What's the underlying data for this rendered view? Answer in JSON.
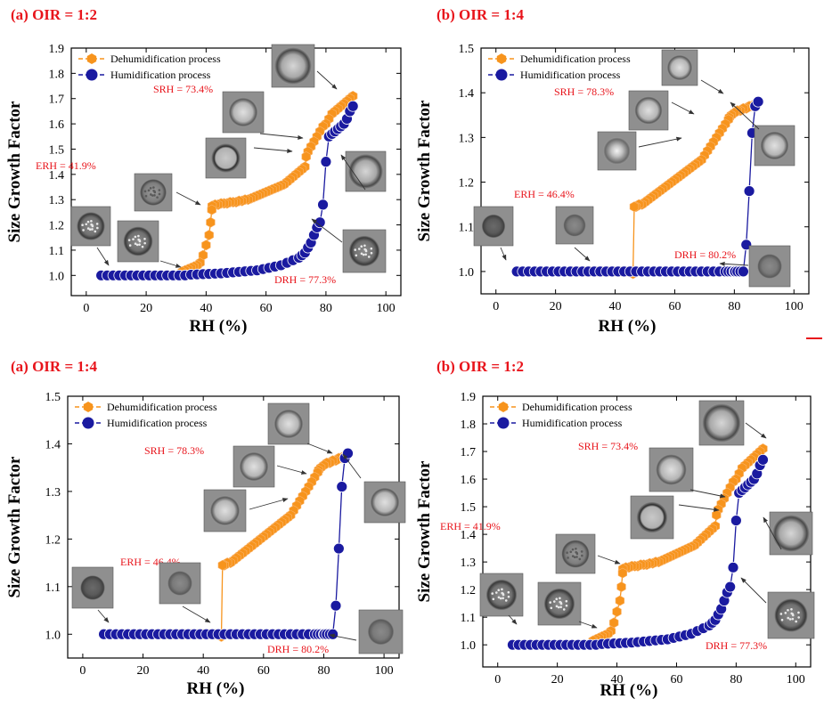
{
  "colors": {
    "dehumid": "#f7941d",
    "humid": "#1a1aa0",
    "title": "#e8141b",
    "annotation": "#e8141b",
    "arrow": "#333333"
  },
  "chart_data": [
    {
      "type": "scatter",
      "title": "(a) OIR = 1:2",
      "xlabel": "RH (%)",
      "ylabel": "Size Growth Factor",
      "xlim": [
        -5,
        105
      ],
      "ylim": [
        0.92,
        1.9
      ],
      "xticks": [
        0,
        20,
        40,
        60,
        80,
        100
      ],
      "yticks": [
        1.0,
        1.1,
        1.2,
        1.3,
        1.4,
        1.5,
        1.6,
        1.7,
        1.8,
        1.9
      ],
      "yticks_labels": [
        "1.0",
        "1.1",
        "1.2",
        "1.3",
        "1.4",
        "1.5",
        "1.6",
        "1.7",
        "1.8",
        "1.9"
      ],
      "legend": [
        "Dehumidification process",
        "Humidification process"
      ],
      "legend_position": "top-left",
      "annotations": [
        "SRH = 73.4%",
        "ERH = 41.9%",
        "DRH = 77.3%"
      ],
      "series": [
        {
          "name": "Dehumidification process",
          "x": [
            89,
            88,
            87,
            86,
            85,
            84,
            83,
            82,
            81,
            80,
            79,
            78,
            77,
            76,
            75,
            74,
            73.4,
            73,
            72,
            71,
            70,
            69,
            68,
            67,
            66,
            65,
            64,
            63,
            62,
            61,
            60,
            59,
            58,
            57,
            56,
            55,
            54,
            53,
            52,
            51,
            50,
            49,
            48,
            47,
            46,
            45,
            44,
            43,
            42,
            41.9,
            41.5,
            41,
            40,
            39,
            38,
            37,
            36,
            35,
            34,
            33,
            32
          ],
          "y": [
            1.71,
            1.7,
            1.69,
            1.68,
            1.67,
            1.66,
            1.65,
            1.64,
            1.62,
            1.6,
            1.59,
            1.57,
            1.55,
            1.53,
            1.51,
            1.49,
            1.47,
            1.43,
            1.42,
            1.41,
            1.4,
            1.39,
            1.38,
            1.37,
            1.36,
            1.355,
            1.35,
            1.345,
            1.34,
            1.335,
            1.33,
            1.325,
            1.32,
            1.315,
            1.31,
            1.305,
            1.3,
            1.3,
            1.295,
            1.295,
            1.29,
            1.29,
            1.29,
            1.285,
            1.285,
            1.285,
            1.28,
            1.28,
            1.275,
            1.26,
            1.21,
            1.16,
            1.12,
            1.08,
            1.05,
            1.04,
            1.035,
            1.03,
            1.025,
            1.02,
            1.015
          ]
        },
        {
          "name": "Humidification process",
          "x": [
            5,
            7,
            9,
            11,
            13,
            15,
            17,
            19,
            21,
            23,
            25,
            27,
            29,
            31,
            33,
            35,
            37,
            39,
            41,
            43,
            45,
            47,
            49,
            51,
            53,
            55,
            57,
            59,
            61,
            63,
            65,
            67,
            69,
            71,
            72,
            73,
            74,
            75,
            76,
            77,
            78,
            79,
            80,
            81,
            82,
            83,
            84,
            85,
            86,
            87,
            88,
            89
          ],
          "y": [
            1.0,
            1.0,
            1.0,
            1.0,
            1.0,
            1.0,
            1.0,
            1.0,
            1.0,
            1.0,
            1.0,
            1.0,
            1.0,
            1.0,
            1.0,
            1.003,
            1.004,
            1.005,
            1.006,
            1.007,
            1.008,
            1.01,
            1.012,
            1.014,
            1.016,
            1.018,
            1.02,
            1.025,
            1.03,
            1.035,
            1.04,
            1.05,
            1.06,
            1.07,
            1.08,
            1.09,
            1.11,
            1.13,
            1.16,
            1.19,
            1.21,
            1.28,
            1.45,
            1.55,
            1.56,
            1.57,
            1.58,
            1.59,
            1.6,
            1.62,
            1.65,
            1.67
          ]
        }
      ]
    },
    {
      "type": "scatter",
      "title": "(b) OIR = 1:4",
      "xlabel": "RH (%)",
      "ylabel": "Size Growth Factor",
      "xlim": [
        -5,
        105
      ],
      "ylim": [
        0.95,
        1.5
      ],
      "xticks": [
        0,
        20,
        40,
        60,
        80,
        100
      ],
      "yticks": [
        1.0,
        1.1,
        1.2,
        1.3,
        1.4,
        1.5
      ],
      "yticks_labels": [
        "1.0",
        "1.1",
        "1.2",
        "1.3",
        "1.4",
        "1.5"
      ],
      "legend": [
        "Dehumidification process",
        "Humidification process"
      ],
      "legend_position": "top-left",
      "annotations": [
        "SRH = 78.3%",
        "ERH = 46.4%",
        "DRH = 80.2%"
      ],
      "series": [
        {
          "name": "Dehumidification process",
          "x": [
            88,
            87,
            86,
            85,
            84,
            83,
            82,
            81,
            80,
            79,
            78.3,
            78,
            77,
            76,
            75,
            74,
            73,
            72,
            71,
            70,
            69,
            68,
            67,
            66,
            65,
            64,
            63,
            62,
            61,
            60,
            59,
            58,
            57,
            56,
            55,
            54,
            53,
            52,
            51,
            50,
            49,
            48,
            47,
            46.4,
            46,
            45,
            44,
            43,
            42,
            41,
            40,
            39,
            38,
            37,
            36,
            35,
            34,
            33,
            32,
            30,
            28,
            26
          ],
          "y": [
            1.38,
            1.375,
            1.37,
            1.37,
            1.365,
            1.365,
            1.36,
            1.36,
            1.355,
            1.35,
            1.345,
            1.34,
            1.33,
            1.32,
            1.31,
            1.3,
            1.29,
            1.28,
            1.27,
            1.26,
            1.25,
            1.245,
            1.24,
            1.235,
            1.23,
            1.225,
            1.22,
            1.215,
            1.21,
            1.205,
            1.2,
            1.195,
            1.19,
            1.185,
            1.18,
            1.175,
            1.17,
            1.165,
            1.16,
            1.155,
            1.15,
            1.15,
            1.145,
            1.145,
            0.995,
            1.0,
            1.0,
            1.0,
            1.0,
            1.0,
            1.0,
            1.0,
            1.0,
            1.0,
            1.0,
            1.0,
            1.0,
            1.0,
            1.0,
            1.0,
            1.0,
            1.0
          ]
        },
        {
          "name": "Humidification process",
          "x": [
            7,
            9,
            11,
            13,
            15,
            17,
            19,
            21,
            23,
            25,
            27,
            29,
            31,
            33,
            35,
            37,
            39,
            41,
            43,
            45,
            47,
            49,
            51,
            53,
            55,
            57,
            59,
            61,
            63,
            65,
            67,
            69,
            71,
            73,
            75,
            77,
            78,
            79,
            80,
            80.2,
            81,
            82,
            83,
            84,
            85,
            86,
            87,
            88
          ],
          "y": [
            1.0,
            1.0,
            1.0,
            1.0,
            1.0,
            1.0,
            1.0,
            1.0,
            1.0,
            1.0,
            1.0,
            1.0,
            1.0,
            1.0,
            1.0,
            1.0,
            1.0,
            1.0,
            1.0,
            1.0,
            1.0,
            1.0,
            1.0,
            1.0,
            1.0,
            1.0,
            1.0,
            1.0,
            1.0,
            1.0,
            1.0,
            1.0,
            1.0,
            1.0,
            1.0,
            1.0,
            1.0,
            1.0,
            1.0,
            1.0,
            1.0,
            1.0,
            1.0,
            1.06,
            1.18,
            1.31,
            1.37,
            1.38
          ]
        }
      ]
    },
    {
      "type": "scatter",
      "title": "(a) OIR = 1:4",
      "xlabel": "RH (%)",
      "ylabel": "Size Growth Factor",
      "xlim": [
        -5,
        105
      ],
      "ylim": [
        0.95,
        1.5
      ],
      "xticks": [
        0,
        20,
        40,
        60,
        80,
        100
      ],
      "yticks": [
        1.0,
        1.1,
        1.2,
        1.3,
        1.4,
        1.5
      ],
      "yticks_labels": [
        "1.0",
        "1.1",
        "1.2",
        "1.3",
        "1.4",
        "1.5"
      ],
      "legend": [
        "Dehumidification process",
        "Humidification process"
      ],
      "legend_position": "top-left",
      "annotations": [
        "SRH = 78.3%",
        "ERH = 46.4%",
        "DRH = 80.2%"
      ],
      "series": [
        {
          "name": "Dehumidification process",
          "x": [
            88,
            87,
            86,
            85,
            84,
            83,
            82,
            81,
            80,
            79,
            78.3,
            78,
            77,
            76,
            75,
            74,
            73,
            72,
            71,
            70,
            69,
            68,
            67,
            66,
            65,
            64,
            63,
            62,
            61,
            60,
            59,
            58,
            57,
            56,
            55,
            54,
            53,
            52,
            51,
            50,
            49,
            48,
            47,
            46.4,
            46,
            45,
            44,
            43,
            42,
            41,
            40,
            39,
            38,
            37,
            36,
            35,
            34,
            33,
            32,
            30,
            28,
            26
          ],
          "y": [
            1.38,
            1.375,
            1.37,
            1.37,
            1.365,
            1.365,
            1.36,
            1.36,
            1.355,
            1.35,
            1.345,
            1.34,
            1.33,
            1.32,
            1.31,
            1.3,
            1.29,
            1.28,
            1.27,
            1.26,
            1.25,
            1.245,
            1.24,
            1.235,
            1.23,
            1.225,
            1.22,
            1.215,
            1.21,
            1.205,
            1.2,
            1.195,
            1.19,
            1.185,
            1.18,
            1.175,
            1.17,
            1.165,
            1.16,
            1.155,
            1.15,
            1.15,
            1.145,
            1.145,
            0.995,
            1.0,
            1.0,
            1.0,
            1.0,
            1.0,
            1.0,
            1.0,
            1.0,
            1.0,
            1.0,
            1.0,
            1.0,
            1.0,
            1.0,
            1.0,
            1.0,
            1.0
          ]
        },
        {
          "name": "Humidification process",
          "x": [
            7,
            9,
            11,
            13,
            15,
            17,
            19,
            21,
            23,
            25,
            27,
            29,
            31,
            33,
            35,
            37,
            39,
            41,
            43,
            45,
            47,
            49,
            51,
            53,
            55,
            57,
            59,
            61,
            63,
            65,
            67,
            69,
            71,
            73,
            75,
            77,
            78,
            79,
            80,
            80.2,
            81,
            82,
            83,
            84,
            85,
            86,
            87,
            88
          ],
          "y": [
            1.0,
            1.0,
            1.0,
            1.0,
            1.0,
            1.0,
            1.0,
            1.0,
            1.0,
            1.0,
            1.0,
            1.0,
            1.0,
            1.0,
            1.0,
            1.0,
            1.0,
            1.0,
            1.0,
            1.0,
            1.0,
            1.0,
            1.0,
            1.0,
            1.0,
            1.0,
            1.0,
            1.0,
            1.0,
            1.0,
            1.0,
            1.0,
            1.0,
            1.0,
            1.0,
            1.0,
            1.0,
            1.0,
            1.0,
            1.0,
            1.0,
            1.0,
            1.0,
            1.06,
            1.18,
            1.31,
            1.37,
            1.38
          ]
        }
      ]
    },
    {
      "type": "scatter",
      "title": "(b) OIR = 1:2",
      "xlabel": "RH (%)",
      "ylabel": "Size Growth Factor",
      "xlim": [
        -5,
        105
      ],
      "ylim": [
        0.92,
        1.9
      ],
      "xticks": [
        0,
        20,
        40,
        60,
        80,
        100
      ],
      "yticks": [
        1.0,
        1.1,
        1.2,
        1.3,
        1.4,
        1.5,
        1.6,
        1.7,
        1.8,
        1.9
      ],
      "yticks_labels": [
        "1.0",
        "1.1",
        "1.2",
        "1.3",
        "1.4",
        "1.5",
        "1.6",
        "1.7",
        "1.8",
        "1.9"
      ],
      "legend": [
        "Dehumidification process",
        "Humidification process"
      ],
      "legend_position": "top-left",
      "annotations": [
        "SRH = 73.4%",
        "ERH = 41.9%",
        "DRH = 77.3%"
      ],
      "series": [
        {
          "name": "Dehumidification process",
          "x": [
            89,
            88,
            87,
            86,
            85,
            84,
            83,
            82,
            81,
            80,
            79,
            78,
            77,
            76,
            75,
            74,
            73.4,
            73,
            72,
            71,
            70,
            69,
            68,
            67,
            66,
            65,
            64,
            63,
            62,
            61,
            60,
            59,
            58,
            57,
            56,
            55,
            54,
            53,
            52,
            51,
            50,
            49,
            48,
            47,
            46,
            45,
            44,
            43,
            42,
            41.9,
            41.5,
            41,
            40,
            39,
            38,
            37,
            36,
            35,
            34,
            33,
            32
          ],
          "y": [
            1.71,
            1.7,
            1.69,
            1.68,
            1.67,
            1.66,
            1.65,
            1.64,
            1.62,
            1.6,
            1.59,
            1.57,
            1.55,
            1.53,
            1.51,
            1.49,
            1.47,
            1.43,
            1.42,
            1.41,
            1.4,
            1.39,
            1.38,
            1.37,
            1.36,
            1.355,
            1.35,
            1.345,
            1.34,
            1.335,
            1.33,
            1.325,
            1.32,
            1.315,
            1.31,
            1.305,
            1.3,
            1.3,
            1.295,
            1.295,
            1.29,
            1.29,
            1.29,
            1.285,
            1.285,
            1.285,
            1.28,
            1.28,
            1.275,
            1.26,
            1.21,
            1.16,
            1.12,
            1.08,
            1.05,
            1.04,
            1.035,
            1.03,
            1.025,
            1.02,
            1.015
          ]
        },
        {
          "name": "Humidification process",
          "x": [
            5,
            7,
            9,
            11,
            13,
            15,
            17,
            19,
            21,
            23,
            25,
            27,
            29,
            31,
            33,
            35,
            37,
            39,
            41,
            43,
            45,
            47,
            49,
            51,
            53,
            55,
            57,
            59,
            61,
            63,
            65,
            67,
            69,
            71,
            72,
            73,
            74,
            75,
            76,
            77,
            78,
            79,
            80,
            81,
            82,
            83,
            84,
            85,
            86,
            87,
            88,
            89
          ],
          "y": [
            1.0,
            1.0,
            1.0,
            1.0,
            1.0,
            1.0,
            1.0,
            1.0,
            1.0,
            1.0,
            1.0,
            1.0,
            1.0,
            1.0,
            1.0,
            1.003,
            1.004,
            1.005,
            1.006,
            1.007,
            1.008,
            1.01,
            1.012,
            1.014,
            1.016,
            1.018,
            1.02,
            1.025,
            1.03,
            1.035,
            1.04,
            1.05,
            1.06,
            1.07,
            1.08,
            1.09,
            1.11,
            1.13,
            1.16,
            1.19,
            1.21,
            1.28,
            1.45,
            1.55,
            1.56,
            1.57,
            1.58,
            1.59,
            1.6,
            1.62,
            1.65,
            1.67
          ]
        }
      ]
    }
  ]
}
